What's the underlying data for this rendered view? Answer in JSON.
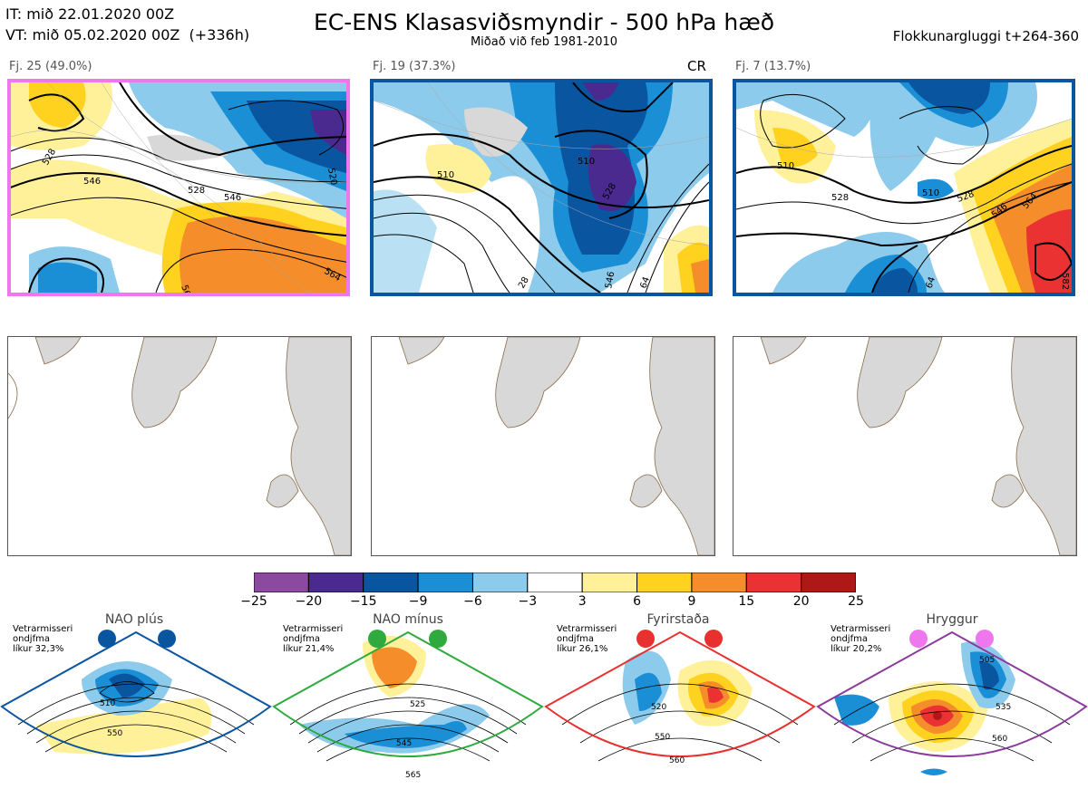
{
  "header": {
    "it_line": "IT: mið 22.01.2020 00Z",
    "vt_line": "VT: mið 05.02.2020 00Z  (+336h)",
    "title": "EC-ENS Klasasviðsmyndir - 500 hPa hæð",
    "subtitle": "Miðað við feb 1981-2010",
    "window": "Flokkunargluggi t+264-360"
  },
  "panels": [
    {
      "label": "Fj. 25 (49.0%)",
      "border_color": "#ee77ee",
      "tag": "",
      "contour_labels": [
        "528",
        "546",
        "520",
        "528",
        "546",
        "564",
        "56"
      ]
    },
    {
      "label": "Fj. 19 (37.3%)",
      "border_color": "#0a55a0",
      "tag": "CR",
      "contour_labels": [
        "510",
        "510",
        "528",
        "546",
        "64",
        "28"
      ]
    },
    {
      "label": "Fj. 7 (13.7%)",
      "border_color": "#0a55a0",
      "tag": "",
      "contour_labels": [
        "510",
        "528",
        "510",
        "528",
        "546",
        "564",
        "582",
        "64"
      ]
    }
  ],
  "colorbar": {
    "ticks": [
      "−25",
      "−20",
      "−15",
      "−9",
      "−6",
      "−3",
      "3",
      "6",
      "9",
      "15",
      "20",
      "25"
    ],
    "colors": [
      "#8b4a9f",
      "#4a2a8f",
      "#0a55a0",
      "#1a8fd6",
      "#8ccbeb",
      "#ffffff",
      "#fff199",
      "#ffd21f",
      "#f48d2a",
      "#ea3232",
      "#b01818"
    ]
  },
  "regimes": [
    {
      "name": "NAO plús",
      "info": "Vetrarmisseri\nondjfma\nlíkur 32,3%",
      "line_color": "#0a55a0",
      "dot_color": "#0a55a0",
      "contour_labels": [
        "510",
        "550"
      ]
    },
    {
      "name": "NAO mínus",
      "info": "Vetrarmisseri\nondjfma\nlíkur 21,4%",
      "line_color": "#2eaa3e",
      "dot_color": "#2eaa3e",
      "contour_labels": [
        "525",
        "545",
        "565"
      ]
    },
    {
      "name": "Fyrirstaða",
      "info": "Vetrarmisseri\nondjfma\nlíkur 26,1%",
      "line_color": "#e8302e",
      "dot_color": "#e8302e",
      "contour_labels": [
        "520",
        "550",
        "560"
      ]
    },
    {
      "name": "Hryggur",
      "info": "Vetrarmisseri\nondjfma\nlíkur 20,2%",
      "line_color": "#8a3a9a",
      "dot_color": "#ee77ee",
      "contour_labels": [
        "505",
        "535",
        "560"
      ]
    }
  ]
}
